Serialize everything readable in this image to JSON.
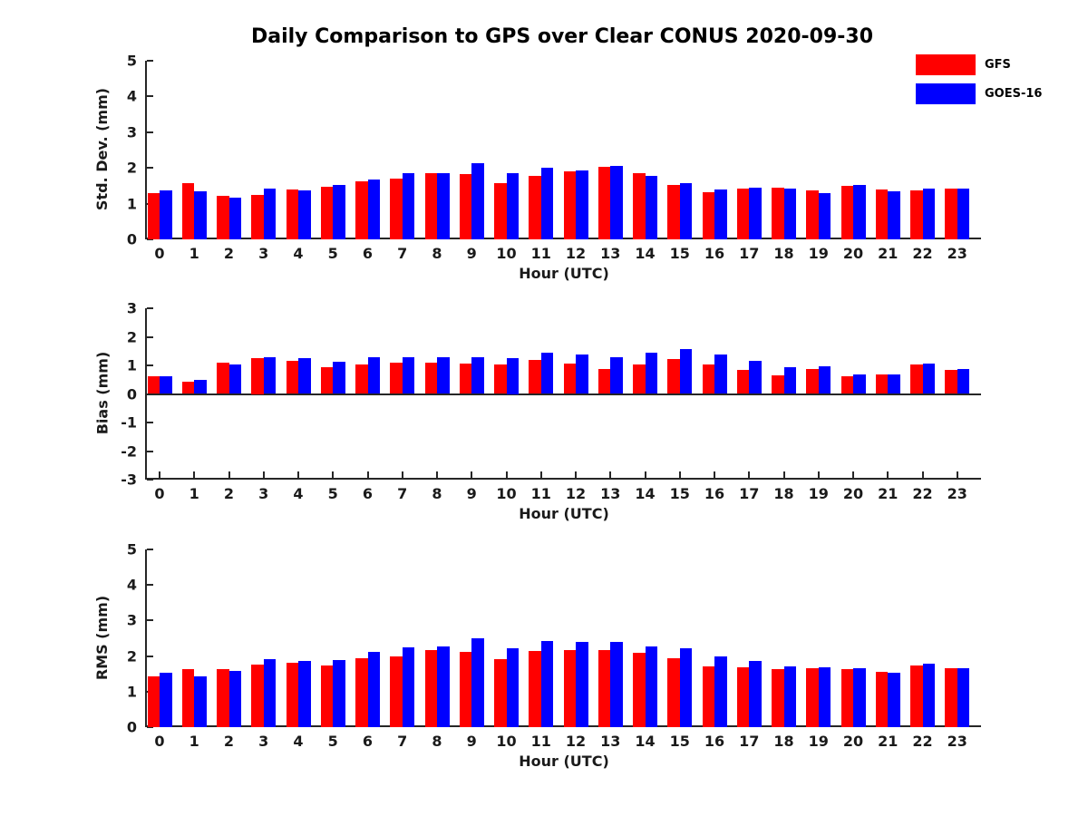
{
  "title": "Daily Comparison to GPS over Clear CONUS 2020-09-30",
  "legend": {
    "position": "top-right",
    "items": [
      {
        "label": "GFS",
        "color": "#ff0000"
      },
      {
        "label": "GOES-16",
        "color": "#0000ff"
      }
    ]
  },
  "colors": {
    "gfs": "#ff0000",
    "goes16": "#0000ff",
    "axis": "#262626",
    "text": "#1a1a1a"
  },
  "chart_data": [
    {
      "type": "bar",
      "title": "",
      "xlabel": "Hour (UTC)",
      "ylabel": "Std. Dev. (mm)",
      "ylim": [
        0,
        5
      ],
      "yticks": [
        0,
        1,
        2,
        3,
        4,
        5
      ],
      "grid": false,
      "legend_position": "top-right",
      "categories": [
        "0",
        "1",
        "2",
        "3",
        "4",
        "5",
        "6",
        "7",
        "8",
        "9",
        "10",
        "11",
        "12",
        "13",
        "14",
        "15",
        "16",
        "17",
        "18",
        "19",
        "20",
        "21",
        "22",
        "23"
      ],
      "series": [
        {
          "name": "GFS",
          "color": "#ff0000",
          "values": [
            1.3,
            1.57,
            1.22,
            1.25,
            1.4,
            1.47,
            1.63,
            1.7,
            1.85,
            1.84,
            1.58,
            1.78,
            1.9,
            2.03,
            1.86,
            1.53,
            1.33,
            1.42,
            1.45,
            1.38,
            1.49,
            1.4,
            1.38,
            1.43
          ]
        },
        {
          "name": "GOES-16",
          "color": "#0000ff",
          "values": [
            1.38,
            1.35,
            1.17,
            1.42,
            1.38,
            1.52,
            1.67,
            1.85,
            1.85,
            2.12,
            1.86,
            2.01,
            1.94,
            2.06,
            1.77,
            1.58,
            1.4,
            1.45,
            1.41,
            1.3,
            1.53,
            1.34,
            1.43,
            1.43
          ]
        }
      ]
    },
    {
      "type": "bar",
      "title": "",
      "xlabel": "Hour (UTC)",
      "ylabel": "Bias (mm)",
      "ylim": [
        -3,
        3
      ],
      "yticks": [
        -3,
        -2,
        -1,
        0,
        1,
        2,
        3
      ],
      "grid": false,
      "categories": [
        "0",
        "1",
        "2",
        "3",
        "4",
        "5",
        "6",
        "7",
        "8",
        "9",
        "10",
        "11",
        "12",
        "13",
        "14",
        "15",
        "16",
        "17",
        "18",
        "19",
        "20",
        "21",
        "22",
        "23"
      ],
      "series": [
        {
          "name": "GFS",
          "color": "#ff0000",
          "values": [
            0.63,
            0.42,
            1.08,
            1.25,
            1.16,
            0.93,
            1.04,
            1.09,
            1.1,
            1.05,
            1.03,
            1.2,
            1.06,
            0.87,
            1.04,
            1.23,
            1.04,
            0.85,
            0.65,
            0.87,
            0.61,
            0.69,
            1.04,
            0.83
          ]
        },
        {
          "name": "GOES-16",
          "color": "#0000ff",
          "values": [
            0.63,
            0.49,
            1.04,
            1.29,
            1.24,
            1.14,
            1.29,
            1.3,
            1.3,
            1.3,
            1.25,
            1.46,
            1.39,
            1.3,
            1.46,
            1.58,
            1.39,
            1.17,
            0.94,
            0.96,
            0.69,
            0.69,
            1.06,
            0.87
          ]
        }
      ]
    },
    {
      "type": "bar",
      "title": "",
      "xlabel": "Hour (UTC)",
      "ylabel": "RMS (mm)",
      "ylim": [
        0,
        5
      ],
      "yticks": [
        0,
        1,
        2,
        3,
        4,
        5
      ],
      "grid": false,
      "categories": [
        "0",
        "1",
        "2",
        "3",
        "4",
        "5",
        "6",
        "7",
        "8",
        "9",
        "10",
        "11",
        "12",
        "13",
        "14",
        "15",
        "16",
        "17",
        "18",
        "19",
        "20",
        "21",
        "22",
        "23"
      ],
      "series": [
        {
          "name": "GFS",
          "color": "#ff0000",
          "values": [
            1.44,
            1.63,
            1.63,
            1.76,
            1.82,
            1.73,
            1.93,
            1.98,
            2.16,
            2.12,
            1.91,
            2.14,
            2.17,
            2.17,
            2.1,
            1.95,
            1.72,
            1.68,
            1.63,
            1.66,
            1.63,
            1.56,
            1.74,
            1.67
          ]
        },
        {
          "name": "GOES-16",
          "color": "#0000ff",
          "values": [
            1.53,
            1.44,
            1.57,
            1.91,
            1.86,
            1.89,
            2.12,
            2.25,
            2.27,
            2.49,
            2.22,
            2.43,
            2.39,
            2.41,
            2.28,
            2.22,
            1.99,
            1.86,
            1.72,
            1.68,
            1.67,
            1.53,
            1.78,
            1.67
          ]
        }
      ]
    }
  ]
}
